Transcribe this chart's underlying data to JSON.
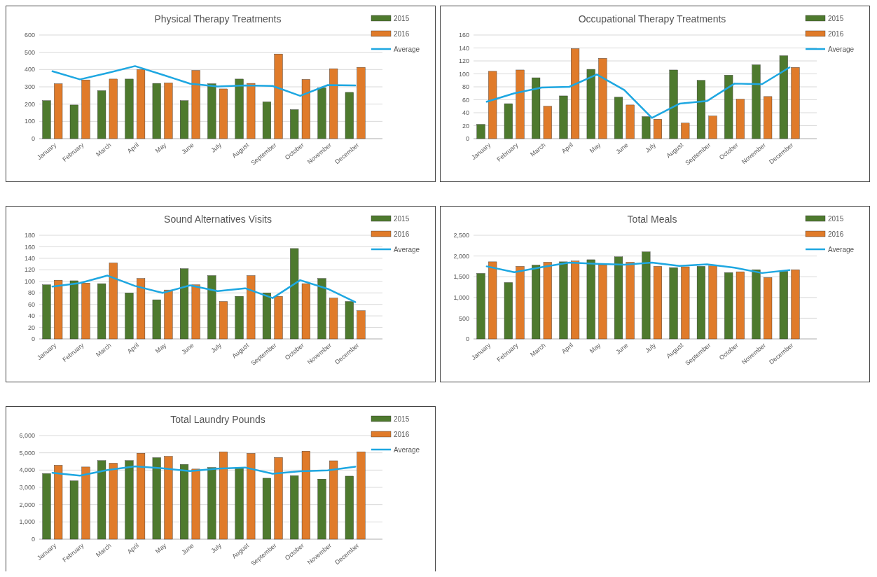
{
  "chart_data": [
    {
      "type": "bar",
      "title": "Physical Therapy Treatments",
      "categories": [
        "January",
        "February",
        "March",
        "April",
        "May",
        "June",
        "July",
        "August",
        "September",
        "October",
        "November",
        "December"
      ],
      "ylim": [
        0,
        600
      ],
      "yticks": [
        0,
        100,
        200,
        300,
        400,
        500,
        600
      ],
      "grid": "y",
      "legend": "top right",
      "series": [
        {
          "name": "2015",
          "color": "#4e7a2e",
          "values": [
            220,
            195,
            278,
            345,
            320,
            220,
            318,
            345,
            213,
            168,
            295,
            268
          ]
        },
        {
          "name": "2016",
          "color": "#e07b2a",
          "values": [
            318,
            340,
            345,
            400,
            323,
            395,
            288,
            320,
            490,
            343,
            405,
            413
          ]
        },
        {
          "name": "Average",
          "type": "line",
          "color": "#1ea7e1",
          "values": [
            390,
            343,
            380,
            420,
            370,
            318,
            302,
            308,
            305,
            248,
            310,
            308
          ]
        }
      ]
    },
    {
      "type": "bar",
      "title": "Occupational Therapy Treatments",
      "categories": [
        "January",
        "February",
        "March",
        "April",
        "May",
        "June",
        "July",
        "August",
        "September",
        "October",
        "November",
        "December"
      ],
      "ylim": [
        0,
        160
      ],
      "yticks": [
        0,
        20,
        40,
        60,
        80,
        100,
        120,
        140,
        160
      ],
      "grid": "y",
      "legend": "top right",
      "series": [
        {
          "name": "2015",
          "color": "#4e7a2e",
          "values": [
            22,
            54,
            94,
            66,
            107,
            64,
            34,
            106,
            90,
            98,
            114,
            128
          ]
        },
        {
          "name": "2016",
          "color": "#e07b2a",
          "values": [
            104,
            106,
            50,
            139,
            124,
            52,
            30,
            24,
            35,
            61,
            65,
            110
          ]
        },
        {
          "name": "Average",
          "type": "line",
          "color": "#1ea7e1",
          "values": [
            57,
            70,
            79,
            80,
            99,
            75,
            32,
            54,
            58,
            85,
            84,
            110
          ]
        }
      ]
    },
    {
      "type": "bar",
      "title": "Sound Alternatives Visits",
      "categories": [
        "January",
        "February",
        "March",
        "April",
        "May",
        "June",
        "July",
        "August",
        "September",
        "October",
        "November",
        "December"
      ],
      "ylim": [
        0,
        180
      ],
      "yticks": [
        0,
        20,
        40,
        60,
        80,
        100,
        120,
        140,
        160,
        180
      ],
      "grid": "y",
      "legend": "top right",
      "series": [
        {
          "name": "2015",
          "color": "#4e7a2e",
          "values": [
            94,
            101,
            96,
            80,
            68,
            122,
            110,
            74,
            80,
            157,
            105,
            65
          ]
        },
        {
          "name": "2016",
          "color": "#e07b2a",
          "values": [
            102,
            97,
            132,
            105,
            85,
            94,
            65,
            110,
            74,
            96,
            71,
            49
          ]
        },
        {
          "name": "Average",
          "type": "line",
          "color": "#1ea7e1",
          "values": [
            91,
            97,
            110,
            92,
            80,
            93,
            83,
            88,
            71,
            102,
            87,
            64
          ]
        }
      ]
    },
    {
      "type": "bar",
      "title": "Total Meals",
      "categories": [
        "January",
        "February",
        "March",
        "April",
        "May",
        "June",
        "July",
        "August",
        "September",
        "October",
        "November",
        "December"
      ],
      "ylim": [
        0,
        2500
      ],
      "yticks": [
        0,
        500,
        {
          "value": 1000,
          "label": "1,000"
        },
        {
          "value": 1500,
          "label": "1,500"
        },
        {
          "value": 2000,
          "label": "2,000"
        },
        {
          "value": 2500,
          "label": "2,500"
        }
      ],
      "grid": "y",
      "legend": "top right",
      "series": [
        {
          "name": "2015",
          "color": "#4e7a2e",
          "values": [
            1580,
            1360,
            1780,
            1860,
            1910,
            1980,
            2100,
            1720,
            1750,
            1600,
            1670,
            1630
          ]
        },
        {
          "name": "2016",
          "color": "#e07b2a",
          "values": [
            1860,
            1750,
            1850,
            1880,
            1790,
            1850,
            1750,
            1740,
            1760,
            1620,
            1480,
            1670
          ]
        },
        {
          "name": "Average",
          "type": "line",
          "color": "#1ea7e1",
          "values": [
            1750,
            1610,
            1730,
            1840,
            1810,
            1790,
            1840,
            1760,
            1800,
            1720,
            1590,
            1660
          ]
        }
      ]
    },
    {
      "type": "bar",
      "title": "Total Laundry Pounds",
      "categories": [
        "January",
        "February",
        "March",
        "April",
        "May",
        "June",
        "July",
        "August",
        "September",
        "October",
        "November",
        "December"
      ],
      "ylim": [
        0,
        6000
      ],
      "yticks": [
        0,
        {
          "value": 1000,
          "label": "1,000"
        },
        {
          "value": 2000,
          "label": "2,000"
        },
        {
          "value": 3000,
          "label": "3,000"
        },
        {
          "value": 4000,
          "label": "4,000"
        },
        {
          "value": 5000,
          "label": "5,000"
        },
        {
          "value": 6000,
          "label": "6,000"
        }
      ],
      "grid": "y",
      "legend": "top right",
      "series": [
        {
          "name": "2015",
          "color": "#4e7a2e",
          "values": [
            3800,
            3380,
            4550,
            4550,
            4720,
            4330,
            4150,
            4130,
            3530,
            3680,
            3480,
            3650
          ]
        },
        {
          "name": "2016",
          "color": "#e07b2a",
          "values": [
            4280,
            4180,
            4400,
            4980,
            4800,
            4060,
            5060,
            4970,
            4730,
            5100,
            4540,
            5060
          ]
        },
        {
          "name": "Average",
          "type": "line",
          "color": "#1ea7e1",
          "values": [
            3840,
            3680,
            4000,
            4220,
            4100,
            3940,
            4080,
            4150,
            3790,
            3930,
            3980,
            4200
          ]
        }
      ]
    }
  ]
}
